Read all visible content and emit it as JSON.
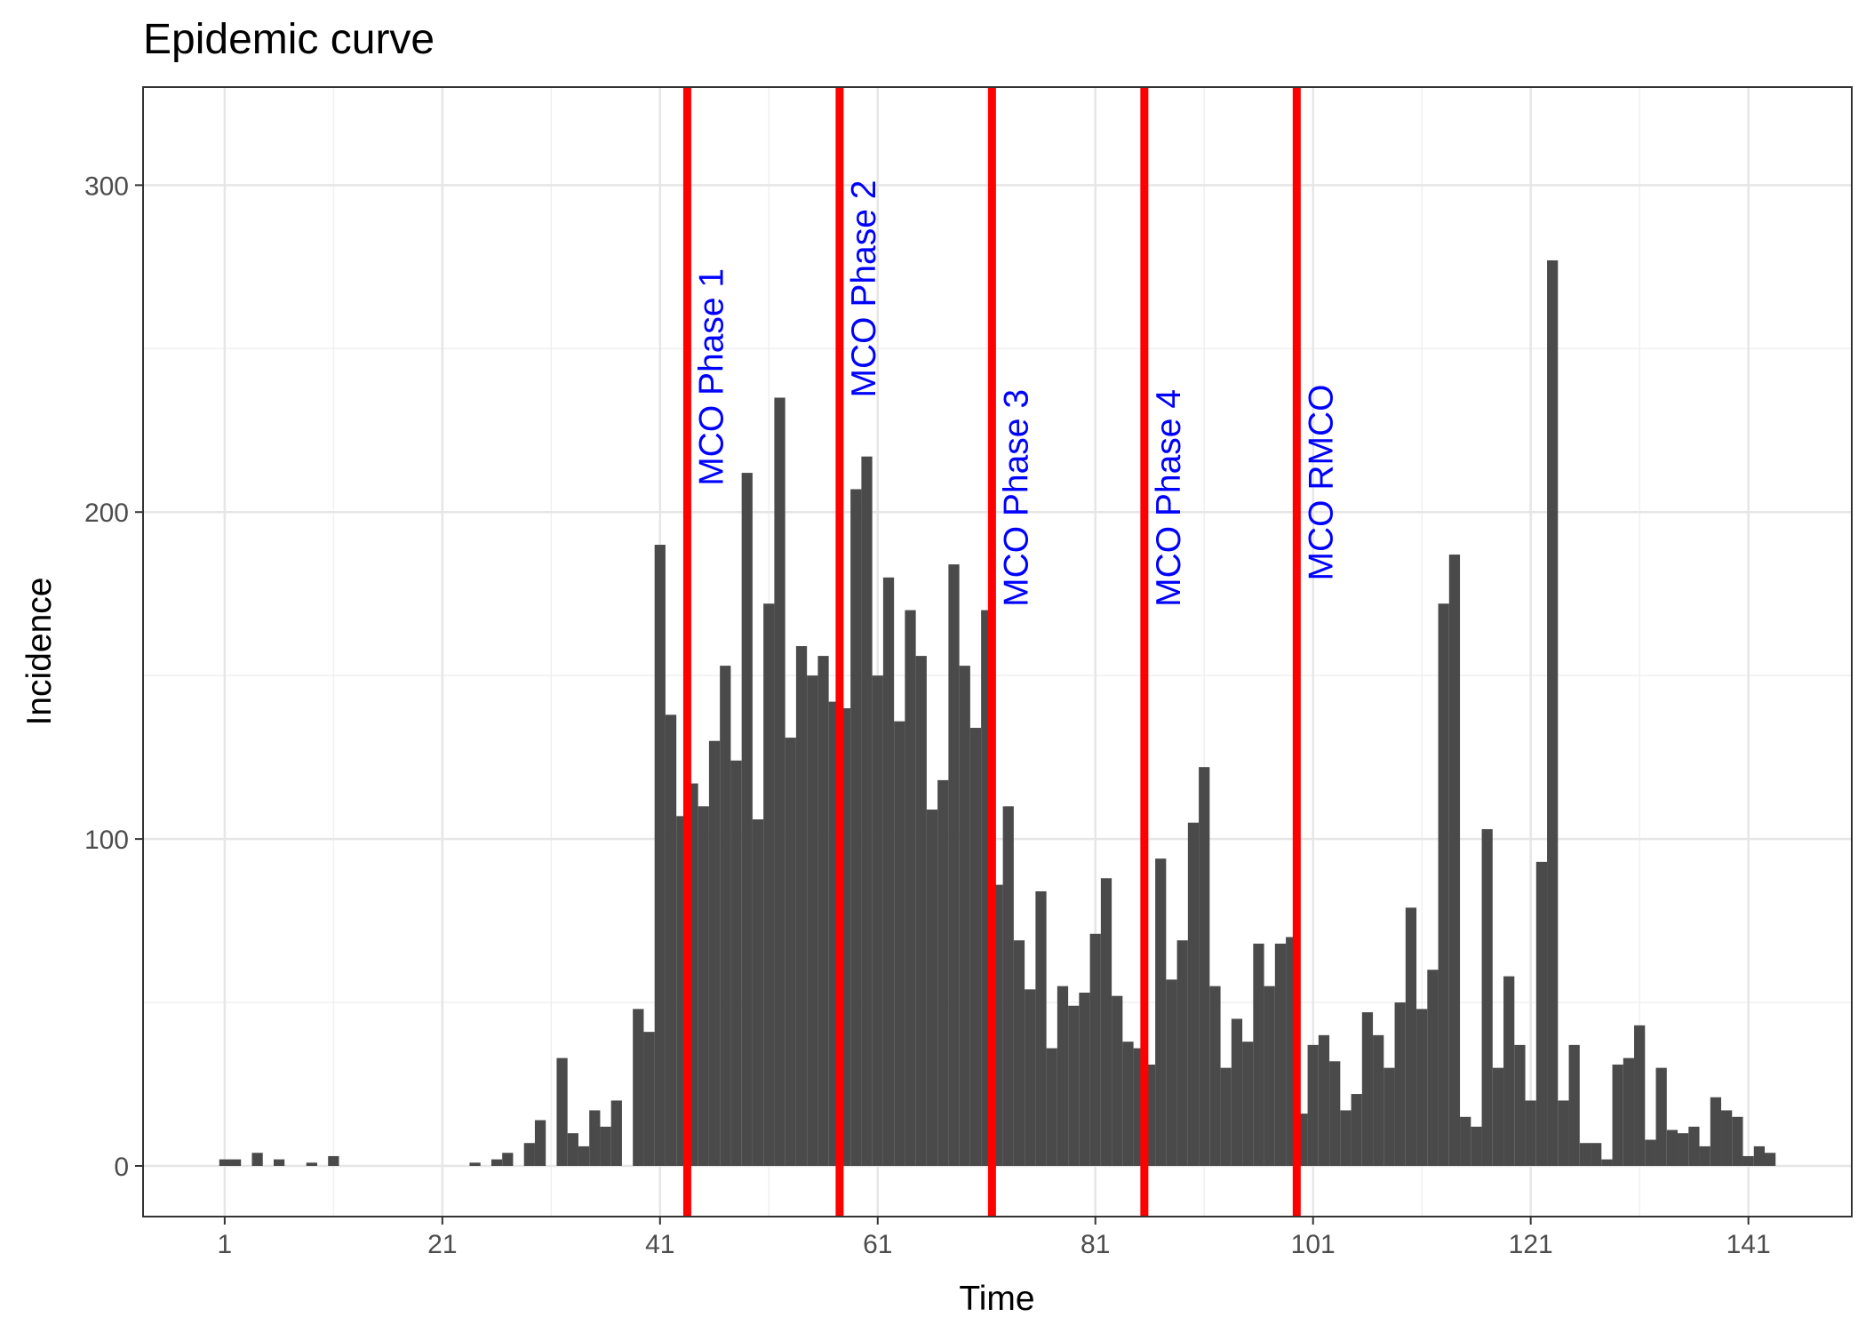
{
  "chart_data": {
    "type": "bar",
    "title": "Epidemic curve",
    "xlabel": "Time",
    "ylabel": "Incidence",
    "xlim": [
      -6.5,
      150.5
    ],
    "ylim": [
      -15.5,
      330
    ],
    "x_ticks": [
      1,
      21,
      41,
      61,
      81,
      101,
      121,
      141
    ],
    "y_ticks": [
      0,
      100,
      200,
      300
    ],
    "y_minor_ticks": [
      50,
      150,
      250
    ],
    "grid": true,
    "bar_color": "#4a4a4a",
    "x": [
      1,
      2,
      3,
      4,
      5,
      6,
      7,
      8,
      9,
      10,
      11,
      12,
      13,
      14,
      15,
      16,
      17,
      18,
      19,
      20,
      21,
      22,
      23,
      24,
      25,
      26,
      27,
      28,
      29,
      30,
      31,
      32,
      33,
      34,
      35,
      36,
      37,
      38,
      39,
      40,
      41,
      42,
      43,
      44,
      45,
      46,
      47,
      48,
      49,
      50,
      51,
      52,
      53,
      54,
      55,
      56,
      57,
      58,
      59,
      60,
      61,
      62,
      63,
      64,
      65,
      66,
      67,
      68,
      69,
      70,
      71,
      72,
      73,
      74,
      75,
      76,
      77,
      78,
      79,
      80,
      81,
      82,
      83,
      84,
      85,
      86,
      87,
      88,
      89,
      90,
      91,
      92,
      93,
      94,
      95,
      96,
      97,
      98,
      99,
      100,
      101,
      102,
      103,
      104,
      105,
      106,
      107,
      108,
      109,
      110,
      111,
      112,
      113,
      114,
      115,
      116,
      117,
      118,
      119,
      120,
      121,
      122,
      123,
      124,
      125,
      126,
      127,
      128,
      129,
      130,
      131,
      132,
      133,
      134,
      135,
      136,
      137,
      138,
      139,
      140,
      141,
      142,
      143
    ],
    "values": [
      2,
      2,
      0,
      4,
      0,
      2,
      0,
      0,
      1,
      0,
      3,
      0,
      0,
      0,
      0,
      0,
      0,
      0,
      0,
      0,
      0,
      0,
      0,
      1,
      0,
      2,
      4,
      0,
      7,
      14,
      0,
      33,
      10,
      6,
      17,
      12,
      20,
      0,
      48,
      41,
      190,
      138,
      107,
      117,
      110,
      130,
      153,
      124,
      212,
      106,
      172,
      235,
      131,
      159,
      150,
      156,
      142,
      140,
      207,
      217,
      150,
      180,
      136,
      170,
      156,
      109,
      118,
      184,
      153,
      134,
      170,
      86,
      110,
      69,
      54,
      84,
      36,
      55,
      49,
      53,
      71,
      88,
      52,
      38,
      36,
      31,
      94,
      57,
      69,
      105,
      122,
      55,
      30,
      45,
      38,
      68,
      55,
      68,
      70,
      16,
      37,
      40,
      32,
      17,
      22,
      47,
      40,
      30,
      50,
      79,
      48,
      60,
      172,
      187,
      15,
      12,
      103,
      30,
      58,
      37,
      20,
      93,
      277,
      20,
      37,
      7,
      7,
      2,
      31,
      33,
      43,
      8,
      30,
      11,
      10,
      12,
      6,
      21,
      17,
      15,
      3,
      6,
      4
    ],
    "annotations": [
      {
        "x": 43.5,
        "label": "MCO Phase 1",
        "label_y": 208,
        "line_color": "#ff0000",
        "text_color": "#0000ff"
      },
      {
        "x": 57.5,
        "label": "MCO Phase 2",
        "label_y": 235,
        "line_color": "#ff0000",
        "text_color": "#0000ff"
      },
      {
        "x": 71.5,
        "label": "MCO Phase 3",
        "label_y": 171,
        "line_color": "#ff0000",
        "text_color": "#0000ff"
      },
      {
        "x": 85.5,
        "label": "MCO Phase 4",
        "label_y": 171,
        "line_color": "#ff0000",
        "text_color": "#0000ff"
      },
      {
        "x": 99.5,
        "label": "MCO RMCO",
        "label_y": 179,
        "line_color": "#ff0000",
        "text_color": "#0000ff"
      }
    ]
  }
}
